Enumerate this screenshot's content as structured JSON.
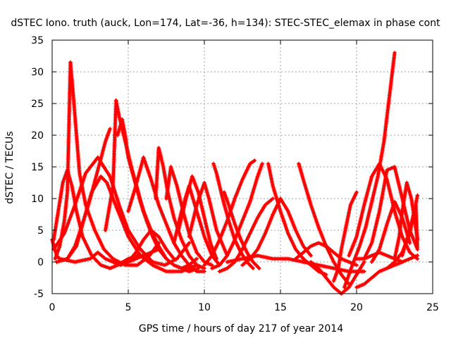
{
  "chart_data": {
    "type": "line",
    "title": "dSTEC Iono. truth (auck, Lon=174, Lat=-36, h=134): STEC-STEC_elemax in phase cont",
    "xlabel": "GPS time / hours of day 217 of year 2014",
    "ylabel": "dSTEC  / TECUs",
    "xlim": [
      0,
      25
    ],
    "ylim": [
      -5,
      35
    ],
    "xticks": [
      0,
      5,
      10,
      15,
      20,
      25
    ],
    "yticks": [
      -5,
      0,
      5,
      10,
      15,
      20,
      25,
      30,
      35
    ],
    "grid": true,
    "marker": "plus",
    "color": "#ff0000",
    "series": [
      {
        "x": [
          0.0,
          0.3,
          0.6,
          1.0,
          1.5,
          2.0,
          2.5,
          3.0,
          3.5,
          3.8
        ],
        "y": [
          3.5,
          1.0,
          0.2,
          0.5,
          2.5,
          6.0,
          10.0,
          14.5,
          19.0,
          21.0
        ]
      },
      {
        "x": [
          0.1,
          0.4,
          0.7,
          1.0,
          1.3,
          1.6,
          2.0,
          2.6,
          3.2,
          3.8,
          4.3,
          5.0,
          5.6,
          6.2
        ],
        "y": [
          3.5,
          8.0,
          12.5,
          14.5,
          12.0,
          8.0,
          4.0,
          1.0,
          -0.5,
          -1.0,
          -0.5,
          0.5,
          1.0,
          1.0
        ]
      },
      {
        "x": [
          0.2,
          0.5,
          0.8,
          1.0,
          1.2,
          1.4,
          1.6,
          1.8,
          2.2,
          2.8,
          3.4,
          4.0,
          4.8,
          5.6,
          6.4,
          7.0
        ],
        "y": [
          0.5,
          2.5,
          6.5,
          11.0,
          31.5,
          26.0,
          20.0,
          14.0,
          9.0,
          5.0,
          2.0,
          0.5,
          -0.5,
          -0.5,
          1.0,
          3.0
        ]
      },
      {
        "x": [
          0.1,
          0.8,
          1.5,
          2.2,
          3.0,
          3.8,
          4.4,
          5.0,
          5.8,
          6.6,
          7.4,
          8.2,
          9.0
        ],
        "y": [
          2.0,
          4.5,
          9.0,
          14.0,
          16.5,
          13.5,
          9.0,
          5.0,
          2.0,
          0.0,
          -0.5,
          0.5,
          3.0
        ]
      },
      {
        "x": [
          0.3,
          1.0,
          1.6,
          2.0,
          2.6,
          3.2,
          3.6,
          4.0,
          4.5,
          5.0,
          5.8,
          6.6,
          7.5,
          8.5,
          9.5
        ],
        "y": [
          0.0,
          0.5,
          2.5,
          6.0,
          11.0,
          13.5,
          12.5,
          10.0,
          7.0,
          4.0,
          1.0,
          -0.5,
          -1.5,
          -1.5,
          -0.5
        ]
      },
      {
        "x": [
          0.5,
          1.5,
          2.5,
          3.0,
          3.5,
          4.0,
          4.5,
          5.0,
          6.0,
          7.0
        ],
        "y": [
          0.5,
          0.0,
          0.5,
          1.5,
          0.5,
          0.0,
          -0.5,
          0.0,
          1.0,
          2.0
        ]
      },
      {
        "x": [
          3.5,
          4.0,
          4.2,
          4.4,
          4.8,
          5.2,
          5.6,
          6.0,
          6.5,
          7.0,
          7.5,
          8.0,
          8.5,
          9.0,
          9.5
        ],
        "y": [
          5.0,
          12.0,
          25.5,
          23.0,
          19.0,
          15.0,
          11.5,
          8.0,
          5.0,
          2.5,
          0.5,
          -0.5,
          -1.0,
          -0.5,
          0.5
        ]
      },
      {
        "x": [
          4.3,
          4.6,
          4.8,
          5.0,
          5.4,
          5.8,
          6.2,
          6.6,
          7.0,
          7.5,
          8.0,
          8.5,
          9.0,
          9.6
        ],
        "y": [
          20.0,
          22.5,
          20.0,
          16.5,
          13.0,
          9.5,
          6.5,
          4.0,
          2.0,
          0.5,
          -0.5,
          -1.0,
          -1.5,
          -1.0
        ]
      },
      {
        "x": [
          5.0,
          5.5,
          6.0,
          6.5,
          7.0,
          7.5,
          8.0,
          8.5,
          9.0,
          9.5,
          10.0
        ],
        "y": [
          8.0,
          12.0,
          16.5,
          13.0,
          9.0,
          6.0,
          3.0,
          1.0,
          -0.5,
          -1.5,
          -1.5
        ]
      },
      {
        "x": [
          6.8,
          7.0,
          7.3,
          7.6,
          8.0,
          8.5,
          9.0,
          9.5,
          10.0
        ],
        "y": [
          10.0,
          18.0,
          15.0,
          11.0,
          7.0,
          3.5,
          1.0,
          -0.5,
          -1.0
        ]
      },
      {
        "x": [
          7.5,
          7.8,
          8.2,
          8.6,
          9.0,
          9.5,
          10.0,
          10.5
        ],
        "y": [
          10.0,
          15.0,
          12.0,
          8.0,
          4.5,
          1.5,
          0.0,
          -0.5
        ]
      },
      {
        "x": [
          5.0,
          5.5,
          6.0,
          6.5,
          7.0,
          7.5,
          8.0
        ],
        "y": [
          0.0,
          1.5,
          3.5,
          5.0,
          4.0,
          2.0,
          0.5
        ]
      },
      {
        "x": [
          8.0,
          8.5,
          9.0,
          9.5,
          10.0,
          10.5,
          11.0
        ],
        "y": [
          3.0,
          8.0,
          12.0,
          8.0,
          4.0,
          1.0,
          -0.5
        ]
      },
      {
        "x": [
          8.3,
          8.8,
          9.2,
          9.6,
          10.0,
          10.4,
          10.8
        ],
        "y": [
          5.0,
          10.0,
          13.5,
          11.0,
          7.0,
          3.0,
          0.5
        ]
      },
      {
        "x": [
          9.0,
          9.5,
          10.0,
          10.3,
          10.8,
          11.5
        ],
        "y": [
          4.0,
          9.0,
          12.5,
          10.0,
          5.0,
          1.0
        ]
      },
      {
        "x": [
          10.6,
          10.8,
          11.2,
          11.6,
          12.0,
          12.4,
          12.8,
          13.2
        ],
        "y": [
          15.5,
          14.0,
          10.0,
          6.5,
          3.5,
          1.5,
          0.0,
          -1.0
        ]
      },
      {
        "x": [
          11.3,
          11.6,
          12.0,
          12.4,
          12.8,
          13.2,
          13.6
        ],
        "y": [
          11.0,
          9.0,
          6.0,
          3.5,
          1.5,
          0.0,
          -1.0
        ]
      },
      {
        "x": [
          10.0,
          10.5,
          11.0,
          11.5,
          12.0,
          12.5,
          13.0,
          13.3
        ],
        "y": [
          -0.5,
          1.0,
          3.5,
          6.5,
          10.0,
          13.0,
          15.5,
          16.0
        ]
      },
      {
        "x": [
          10.5,
          11.0,
          11.5,
          12.0,
          12.5,
          13.0,
          13.5,
          13.8
        ],
        "y": [
          -1.0,
          -0.5,
          1.0,
          3.5,
          6.5,
          9.5,
          13.5,
          15.5
        ]
      },
      {
        "x": [
          11.0,
          11.5,
          12.0,
          12.5,
          13.0,
          13.5,
          14.0,
          14.5
        ],
        "y": [
          -1.5,
          -1.0,
          0.0,
          2.0,
          4.5,
          7.0,
          9.0,
          10.0
        ]
      },
      {
        "x": [
          12.5,
          13.0,
          13.5,
          14.0,
          14.5,
          15.0,
          15.5,
          16.0,
          16.5,
          17.0
        ],
        "y": [
          -0.5,
          0.5,
          2.0,
          4.5,
          7.5,
          10.0,
          8.0,
          5.0,
          2.5,
          1.0
        ]
      },
      {
        "x": [
          14.2,
          14.5,
          15.0,
          15.5,
          16.0,
          16.5,
          17.0,
          17.5,
          18.0
        ],
        "y": [
          15.5,
          12.0,
          8.0,
          4.5,
          2.0,
          0.5,
          -0.5,
          -1.5,
          -2.0
        ]
      },
      {
        "x": [
          16.2,
          16.5,
          17.0,
          17.5,
          18.0,
          18.5,
          19.0,
          19.5
        ],
        "y": [
          15.5,
          13.0,
          9.0,
          5.5,
          2.5,
          0.0,
          -2.0,
          -3.5
        ]
      },
      {
        "x": [
          11.5,
          12.5,
          13.5,
          14.5,
          15.5,
          16.5,
          17.5,
          18.5,
          19.5,
          20.5
        ],
        "y": [
          0.0,
          0.5,
          1.0,
          0.5,
          0.5,
          0.0,
          -0.5,
          -1.0,
          -1.5,
          -1.5
        ]
      },
      {
        "x": [
          16.0,
          16.5,
          17.0,
          17.5,
          18.0,
          18.5,
          19.0,
          19.5,
          20.0
        ],
        "y": [
          0.5,
          1.5,
          2.5,
          3.0,
          2.5,
          1.5,
          0.5,
          0.0,
          -0.5
        ]
      },
      {
        "x": [
          17.0,
          17.5,
          18.0,
          18.5,
          19.0,
          19.5,
          20.0,
          20.5
        ],
        "y": [
          0.0,
          -1.0,
          -2.5,
          -4.0,
          -5.0,
          -4.0,
          -2.0,
          0.0
        ]
      },
      {
        "x": [
          18.5,
          18.8,
          19.0,
          19.3,
          19.6,
          20.0
        ],
        "y": [
          -3.0,
          -1.0,
          2.0,
          5.5,
          9.0,
          11.0
        ]
      },
      {
        "x": [
          19.2,
          19.5,
          19.8,
          20.2,
          20.6,
          21.0,
          21.4,
          21.8,
          22.2,
          22.5
        ],
        "y": [
          -4.0,
          -2.0,
          0.0,
          2.5,
          5.5,
          9.5,
          13.5,
          19.0,
          27.0,
          33.0
        ]
      },
      {
        "x": [
          20.0,
          20.5,
          21.0,
          21.5,
          22.0,
          22.5,
          23.0,
          23.5,
          24.0
        ],
        "y": [
          -4.0,
          -3.5,
          -2.5,
          -1.5,
          -1.0,
          -0.5,
          0.0,
          0.5,
          1.0
        ]
      },
      {
        "x": [
          19.5,
          20.0,
          20.5,
          21.0,
          21.5,
          22.0,
          22.5,
          23.0,
          23.5,
          24.0
        ],
        "y": [
          1.0,
          4.0,
          9.0,
          13.5,
          15.5,
          13.0,
          8.0,
          4.0,
          1.5,
          0.5
        ]
      },
      {
        "x": [
          20.5,
          21.0,
          21.5,
          22.0,
          22.5,
          23.0,
          23.5,
          24.0
        ],
        "y": [
          0.5,
          3.0,
          8.0,
          14.5,
          15.0,
          10.0,
          5.0,
          2.0
        ]
      },
      {
        "x": [
          21.0,
          21.5,
          22.0,
          22.5,
          23.0,
          23.5
        ],
        "y": [
          0.0,
          2.0,
          6.0,
          9.5,
          7.0,
          3.0
        ]
      },
      {
        "x": [
          20.0,
          20.5,
          21.0,
          21.5,
          22.0,
          22.5,
          23.0
        ],
        "y": [
          0.5,
          0.5,
          1.0,
          1.5,
          1.0,
          0.5,
          0.0
        ]
      },
      {
        "x": [
          22.5,
          22.8,
          23.0,
          23.3,
          23.6,
          24.0
        ],
        "y": [
          0.5,
          4.0,
          8.0,
          12.5,
          10.0,
          3.5
        ]
      },
      {
        "x": [
          22.0,
          22.5,
          23.0,
          23.5,
          23.8,
          24.0
        ],
        "y": [
          -1.0,
          0.0,
          1.5,
          4.5,
          8.0,
          10.5
        ]
      },
      {
        "x": [
          23.0,
          23.3,
          23.6,
          23.9,
          24.0
        ],
        "y": [
          1.0,
          3.5,
          6.0,
          9.0,
          2.0
        ]
      }
    ]
  }
}
